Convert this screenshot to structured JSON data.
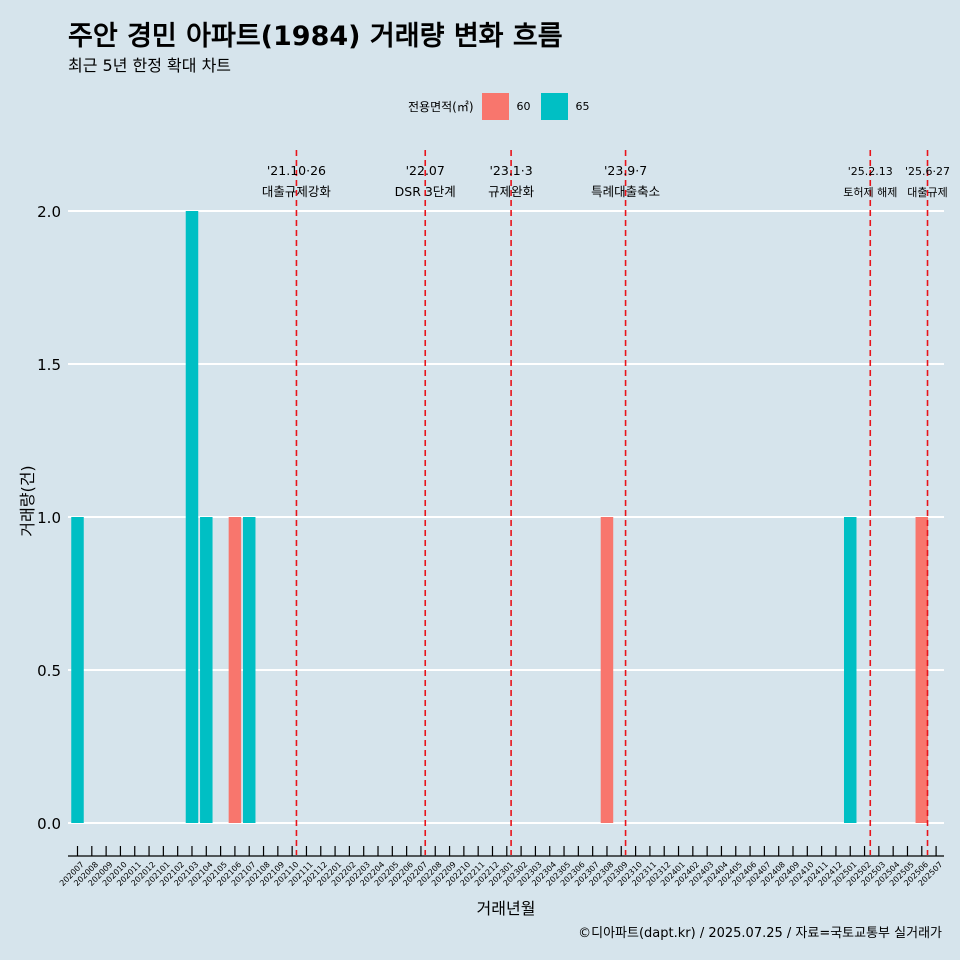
{
  "title": "주안 경민 아파트(1984) 거래량 변화 흐름",
  "subtitle": "최근 5년 한정 확대 차트",
  "caption": "©디아파트(dapt.kr) / 2025.07.25 / 자료=국토교통부 실거래가",
  "colors": {
    "background": "#d6e4ec",
    "area60": "#f8766d",
    "area65": "#00bfc4",
    "policy_line": "#e8131a",
    "grid": "#ffffff"
  },
  "chart_data": {
    "type": "bar",
    "title": "주안 경민 아파트(1984) 거래량 변화 흐름",
    "subtitle": "최근 5년 한정 확대 차트",
    "xlabel": "거래년월",
    "ylabel": "거래량(건)",
    "ylim": [
      0,
      2
    ],
    "yticks": [
      "0.0",
      "0.5",
      "1.0",
      "1.5",
      "2.0"
    ],
    "grid": "horizontal",
    "legend": {
      "title": "전용면적(㎡)",
      "placement": "top",
      "entries": [
        {
          "name": "60",
          "color": "#f8766d"
        },
        {
          "name": "65",
          "color": "#00bfc4"
        }
      ]
    },
    "categories": [
      "202007",
      "202008",
      "202009",
      "202010",
      "202011",
      "202012",
      "202101",
      "202102",
      "202103",
      "202104",
      "202105",
      "202106",
      "202107",
      "202108",
      "202109",
      "202110",
      "202111",
      "202112",
      "202201",
      "202202",
      "202203",
      "202204",
      "202205",
      "202206",
      "202207",
      "202208",
      "202209",
      "202210",
      "202211",
      "202212",
      "202301",
      "202302",
      "202303",
      "202304",
      "202305",
      "202306",
      "202307",
      "202308",
      "202309",
      "202310",
      "202311",
      "202312",
      "202401",
      "202402",
      "202403",
      "202404",
      "202405",
      "202406",
      "202407",
      "202408",
      "202409",
      "202410",
      "202411",
      "202412",
      "202501",
      "202502",
      "202503",
      "202504",
      "202505",
      "202506",
      "202507"
    ],
    "bars": [
      {
        "month": "202007",
        "area": "65",
        "value": 1
      },
      {
        "month": "202103",
        "area": "65",
        "value": 2
      },
      {
        "month": "202104",
        "area": "65",
        "value": 1
      },
      {
        "month": "202106",
        "area": "60",
        "value": 1
      },
      {
        "month": "202107",
        "area": "65",
        "value": 1
      },
      {
        "month": "202308",
        "area": "60",
        "value": 1
      },
      {
        "month": "202501",
        "area": "65",
        "value": 1
      },
      {
        "month": "202506",
        "area": "60",
        "value": 1
      }
    ],
    "annotations": [
      {
        "at": 15.3,
        "date": "'21.10·26",
        "label": "대출규제강화"
      },
      {
        "at": 24.3,
        "date": "'22.07",
        "label": "DSR 3단계"
      },
      {
        "at": 30.3,
        "date": "'23.1·3",
        "label": "규제완화"
      },
      {
        "at": 38.3,
        "date": "'23.9·7",
        "label": "특례대출축소"
      },
      {
        "at": 55.4,
        "date": "'25.2.13",
        "label": "토허제 해제"
      },
      {
        "at": 59.4,
        "date": "'25.6·27",
        "label": "대출규제"
      }
    ]
  }
}
